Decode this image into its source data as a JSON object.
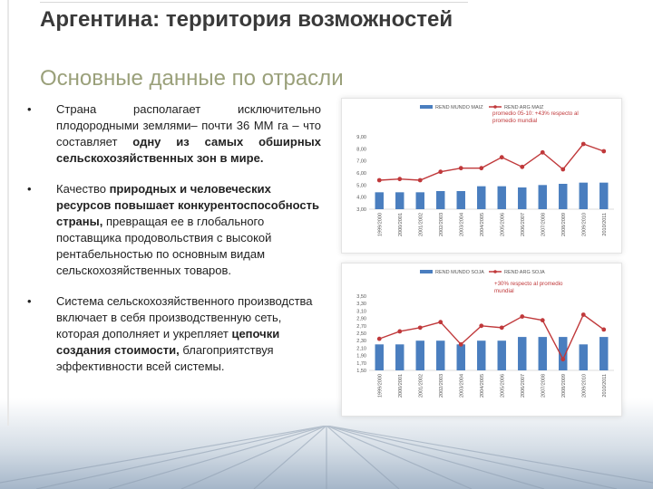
{
  "slide": {
    "title": "Аргентина: территория возможностей",
    "subtitle": "Основные данные по отрасли"
  },
  "bullets": [
    {
      "segments": [
        {
          "text": "Страна располагает исключительно плодородными землями– почти 36 ММ га – что составляет ",
          "bold": false
        },
        {
          "text": "одну из самых обширных сельскохозяйственных зон в мире.",
          "bold": true
        }
      ]
    },
    {
      "segments": [
        {
          "text": "Качество ",
          "bold": false
        },
        {
          "text": "природных и человеческих ресурсов повышает конкурентоспособность страны,",
          "bold": true
        },
        {
          "text": " превращая ее в глобального поставщика продовольствия с высокой рентабельностью по основным видам сельскохозяйственных товаров.",
          "bold": false
        }
      ]
    },
    {
      "segments": [
        {
          "text": "Система сельскохозяйственного производства включает в себя производственную сеть, которая дополняет и укрепляет ",
          "bold": false
        },
        {
          "text": "цепочки создания стоимости,",
          "bold": true
        },
        {
          "text": " благоприятствуя эффективности всей системы.",
          "bold": false
        }
      ]
    }
  ],
  "chart_data": [
    {
      "type": "bar",
      "categories": [
        "1999/2000",
        "2000/2001",
        "2001/2002",
        "2002/2003",
        "2003/2004",
        "2004/2005",
        "2005/2006",
        "2006/2007",
        "2007/2008",
        "2008/2009",
        "2009/2010",
        "2010/2011"
      ],
      "series": [
        {
          "name": "REND MUNDO MAIZ",
          "kind": "bar",
          "color": "#4a7ebf",
          "values": [
            4.4,
            4.4,
            4.4,
            4.5,
            4.5,
            4.9,
            4.9,
            4.8,
            5.0,
            5.1,
            5.2,
            5.2
          ]
        },
        {
          "name": "REND ARG MAIZ",
          "kind": "line",
          "color": "#c0393b",
          "values": [
            5.4,
            5.5,
            5.4,
            6.1,
            6.4,
            6.4,
            7.3,
            6.5,
            7.7,
            6.3,
            8.4,
            7.8
          ]
        }
      ],
      "annotation": "promedio 05-10: +43% respecto al promedio mundial",
      "ylim": [
        3.0,
        9.0
      ],
      "yticks": [
        "3,00",
        "4,00",
        "5,00",
        "6,00",
        "7,00",
        "8,00",
        "9,00"
      ],
      "legend_position": "top",
      "grid": false
    },
    {
      "type": "bar",
      "categories": [
        "1999/2000",
        "2000/2001",
        "2001/2002",
        "2002/2003",
        "2003/2004",
        "2004/2005",
        "2005/2006",
        "2006/2007",
        "2007/2008",
        "2008/2009",
        "2009/2010",
        "2010/2011"
      ],
      "series": [
        {
          "name": "REND MUNDO SOJA",
          "kind": "bar",
          "color": "#4a7ebf",
          "values": [
            2.2,
            2.2,
            2.3,
            2.3,
            2.2,
            2.3,
            2.3,
            2.4,
            2.4,
            2.4,
            2.2,
            2.4
          ]
        },
        {
          "name": "REND ARG SOJA",
          "kind": "line",
          "color": "#c0393b",
          "values": [
            2.35,
            2.55,
            2.65,
            2.8,
            2.2,
            2.7,
            2.65,
            2.95,
            2.85,
            1.8,
            3.0,
            2.6
          ]
        }
      ],
      "annotation": "+30% respecto al promedio mundial",
      "ylim": [
        1.5,
        3.5
      ],
      "yticks": [
        "1,50",
        "1,70",
        "1,90",
        "2,10",
        "2,30",
        "2,50",
        "2,70",
        "2,90",
        "3,10",
        "3,30",
        "3,50"
      ],
      "legend_position": "top",
      "grid": false
    }
  ]
}
